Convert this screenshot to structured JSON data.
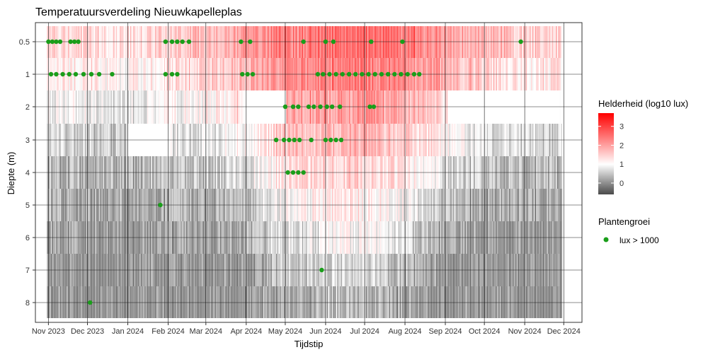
{
  "chart_data": {
    "type": "heatmap",
    "title": "Temperatuursverdeling Nieuwkapelleplas",
    "xlabel": "Tijdstip",
    "ylabel": "Diepte (m)",
    "x_range": [
      "2023-10-22",
      "2024-12-15"
    ],
    "x_ticks": [
      "Nov 2023",
      "Dec 2023",
      "Jan 2024",
      "Feb 2024",
      "Mar 2024",
      "Apr 2024",
      "May 2024",
      "Jun 2024",
      "Jul 2024",
      "Aug 2024",
      "Sep 2024",
      "Oct 2024",
      "Nov 2024",
      "Dec 2024"
    ],
    "x_tick_dates": [
      "2023-11-01",
      "2023-12-01",
      "2024-01-01",
      "2024-02-01",
      "2024-03-01",
      "2024-04-01",
      "2024-05-01",
      "2024-06-01",
      "2024-07-01",
      "2024-08-01",
      "2024-09-01",
      "2024-10-01",
      "2024-11-01",
      "2024-12-01"
    ],
    "depths": [
      "0.5",
      "1",
      "2",
      "3",
      "4",
      "5",
      "6",
      "7",
      "8"
    ],
    "fill_legend": {
      "title": "Helderheid (log10 lux)",
      "ticks": [
        "0",
        "1",
        "2",
        "3"
      ],
      "range": [
        -0.6,
        3.7
      ],
      "colors": [
        "#4a4a4a",
        "#ffffff",
        "#ff0000"
      ]
    },
    "point_legend": {
      "title": "Plantengroei",
      "label": "lux > 1000",
      "color": "#1a9e1a"
    },
    "intensity_profile": [
      {
        "date": "2023-11-01",
        "values": [
          1.8,
          1.4,
          0.9,
          0.5,
          0.1,
          0.0,
          -0.3,
          -0.5,
          -0.5
        ]
      },
      {
        "date": "2023-12-01",
        "values": [
          1.7,
          1.3,
          0.8,
          0.4,
          0.0,
          -0.2,
          -0.5,
          -0.6,
          -0.6
        ]
      },
      {
        "date": "2024-01-01",
        "values": [
          1.5,
          1.1,
          0.6,
          0.2,
          -0.1,
          -0.3,
          -0.5,
          -0.6,
          -0.6
        ]
      },
      {
        "date": "2024-02-01",
        "values": [
          1.9,
          1.5,
          1.0,
          0.6,
          0.2,
          -0.1,
          -0.4,
          -0.5,
          -0.6
        ]
      },
      {
        "date": "2024-03-01",
        "values": [
          2.1,
          1.7,
          1.1,
          0.6,
          0.2,
          -0.1,
          -0.4,
          -0.5,
          -0.6
        ]
      },
      {
        "date": "2024-04-01",
        "values": [
          2.6,
          2.2,
          1.6,
          1.1,
          0.6,
          0.2,
          -0.2,
          -0.4,
          -0.5
        ]
      },
      {
        "date": "2024-05-01",
        "values": [
          3.1,
          2.9,
          2.5,
          2.0,
          1.5,
          1.0,
          0.6,
          0.2,
          -0.1
        ]
      },
      {
        "date": "2024-06-01",
        "values": [
          3.4,
          3.1,
          2.6,
          2.2,
          1.7,
          1.2,
          0.8,
          0.4,
          0.1
        ]
      },
      {
        "date": "2024-07-01",
        "values": [
          3.5,
          3.2,
          2.7,
          2.3,
          1.8,
          1.3,
          0.9,
          0.5,
          0.2
        ]
      },
      {
        "date": "2024-08-01",
        "values": [
          3.3,
          3.0,
          2.4,
          1.9,
          1.4,
          0.9,
          0.5,
          0.1,
          -0.2
        ]
      },
      {
        "date": "2024-09-01",
        "values": [
          2.7,
          2.3,
          1.6,
          1.0,
          0.5,
          0.1,
          -0.3,
          -0.5,
          -0.5
        ]
      },
      {
        "date": "2024-10-01",
        "values": [
          2.2,
          1.8,
          1.2,
          0.6,
          0.2,
          -0.1,
          -0.4,
          -0.5,
          -0.6
        ]
      },
      {
        "date": "2024-11-01",
        "values": [
          1.8,
          1.4,
          0.8,
          0.4,
          0.0,
          -0.2,
          -0.5,
          -0.6,
          -0.6
        ]
      }
    ],
    "missing": [
      {
        "depth": "2",
        "from": "2024-03-30",
        "to": "2024-05-01"
      },
      {
        "depth": "3",
        "from": "2024-01-01",
        "to": "2024-02-01"
      },
      {
        "depth": "2",
        "from": "2024-09-03",
        "to": "2024-11-27"
      }
    ],
    "high_light_points": [
      {
        "date": "2023-11-01",
        "depth": "0.5"
      },
      {
        "date": "2023-11-04",
        "depth": "0.5"
      },
      {
        "date": "2023-11-07",
        "depth": "0.5"
      },
      {
        "date": "2023-11-10",
        "depth": "0.5"
      },
      {
        "date": "2023-11-18",
        "depth": "0.5"
      },
      {
        "date": "2023-11-21",
        "depth": "0.5"
      },
      {
        "date": "2023-11-24",
        "depth": "0.5"
      },
      {
        "date": "2024-01-30",
        "depth": "0.5"
      },
      {
        "date": "2024-02-04",
        "depth": "0.5"
      },
      {
        "date": "2024-02-08",
        "depth": "0.5"
      },
      {
        "date": "2024-02-12",
        "depth": "0.5"
      },
      {
        "date": "2024-02-17",
        "depth": "0.5"
      },
      {
        "date": "2024-03-28",
        "depth": "0.5"
      },
      {
        "date": "2024-04-04",
        "depth": "0.5"
      },
      {
        "date": "2024-05-15",
        "depth": "0.5"
      },
      {
        "date": "2024-06-01",
        "depth": "0.5"
      },
      {
        "date": "2024-06-07",
        "depth": "0.5"
      },
      {
        "date": "2024-07-06",
        "depth": "0.5"
      },
      {
        "date": "2024-07-30",
        "depth": "0.5"
      },
      {
        "date": "2024-10-29",
        "depth": "0.5"
      },
      {
        "date": "2023-11-03",
        "depth": "1"
      },
      {
        "date": "2023-11-07",
        "depth": "1"
      },
      {
        "date": "2023-11-12",
        "depth": "1"
      },
      {
        "date": "2023-11-17",
        "depth": "1"
      },
      {
        "date": "2023-11-22",
        "depth": "1"
      },
      {
        "date": "2023-11-28",
        "depth": "1"
      },
      {
        "date": "2023-12-04",
        "depth": "1"
      },
      {
        "date": "2023-12-10",
        "depth": "1"
      },
      {
        "date": "2023-12-20",
        "depth": "1"
      },
      {
        "date": "2024-01-30",
        "depth": "1"
      },
      {
        "date": "2024-02-04",
        "depth": "1"
      },
      {
        "date": "2024-02-08",
        "depth": "1"
      },
      {
        "date": "2024-03-29",
        "depth": "1"
      },
      {
        "date": "2024-04-02",
        "depth": "1"
      },
      {
        "date": "2024-04-06",
        "depth": "1"
      },
      {
        "date": "2024-05-26",
        "depth": "1"
      },
      {
        "date": "2024-05-30",
        "depth": "1"
      },
      {
        "date": "2024-06-04",
        "depth": "1"
      },
      {
        "date": "2024-06-09",
        "depth": "1"
      },
      {
        "date": "2024-06-14",
        "depth": "1"
      },
      {
        "date": "2024-06-19",
        "depth": "1"
      },
      {
        "date": "2024-06-24",
        "depth": "1"
      },
      {
        "date": "2024-06-29",
        "depth": "1"
      },
      {
        "date": "2024-07-04",
        "depth": "1"
      },
      {
        "date": "2024-07-09",
        "depth": "1"
      },
      {
        "date": "2024-07-14",
        "depth": "1"
      },
      {
        "date": "2024-07-19",
        "depth": "1"
      },
      {
        "date": "2024-07-24",
        "depth": "1"
      },
      {
        "date": "2024-07-29",
        "depth": "1"
      },
      {
        "date": "2024-08-03",
        "depth": "1"
      },
      {
        "date": "2024-08-08",
        "depth": "1"
      },
      {
        "date": "2024-08-12",
        "depth": "1"
      },
      {
        "date": "2024-05-01",
        "depth": "2"
      },
      {
        "date": "2024-05-07",
        "depth": "2"
      },
      {
        "date": "2024-05-11",
        "depth": "2"
      },
      {
        "date": "2024-05-19",
        "depth": "2"
      },
      {
        "date": "2024-05-23",
        "depth": "2"
      },
      {
        "date": "2024-05-28",
        "depth": "2"
      },
      {
        "date": "2024-06-02",
        "depth": "2"
      },
      {
        "date": "2024-06-06",
        "depth": "2"
      },
      {
        "date": "2024-06-12",
        "depth": "2"
      },
      {
        "date": "2024-07-05",
        "depth": "2"
      },
      {
        "date": "2024-07-08",
        "depth": "2"
      },
      {
        "date": "2024-04-24",
        "depth": "3"
      },
      {
        "date": "2024-04-30",
        "depth": "3"
      },
      {
        "date": "2024-05-04",
        "depth": "3"
      },
      {
        "date": "2024-05-08",
        "depth": "3"
      },
      {
        "date": "2024-05-12",
        "depth": "3"
      },
      {
        "date": "2024-05-21",
        "depth": "3"
      },
      {
        "date": "2024-06-01",
        "depth": "3"
      },
      {
        "date": "2024-06-05",
        "depth": "3"
      },
      {
        "date": "2024-06-09",
        "depth": "3"
      },
      {
        "date": "2024-06-13",
        "depth": "3"
      },
      {
        "date": "2024-05-03",
        "depth": "4"
      },
      {
        "date": "2024-05-07",
        "depth": "4"
      },
      {
        "date": "2024-05-11",
        "depth": "4"
      },
      {
        "date": "2024-05-15",
        "depth": "4"
      },
      {
        "date": "2024-01-26",
        "depth": "5"
      },
      {
        "date": "2024-05-29",
        "depth": "7"
      },
      {
        "date": "2023-12-03",
        "depth": "8"
      }
    ]
  }
}
